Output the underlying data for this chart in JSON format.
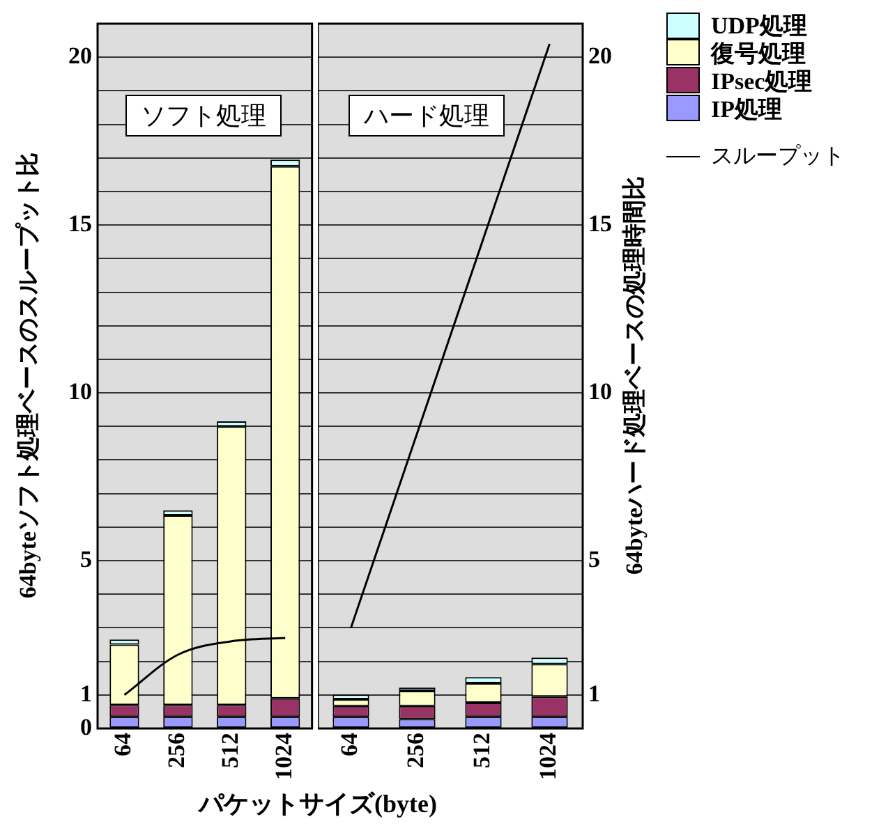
{
  "chart_data": [
    {
      "type": "bar",
      "stacked": true,
      "xlabel": "パケットサイズ(byte)",
      "ylabel": "64byteソフト処理ベースのスループット比",
      "annotations": [
        "ソフト処理"
      ],
      "categories": [
        "64",
        "256",
        "512",
        "1024"
      ],
      "series": [
        {
          "name": "IP処理",
          "color": "#9999ff",
          "values": [
            0.35,
            0.35,
            0.35,
            0.35
          ]
        },
        {
          "name": "IPsec処理",
          "color": "#993366",
          "values": [
            0.35,
            0.35,
            0.35,
            0.55
          ]
        },
        {
          "name": "復号処理",
          "color": "#ffffcc",
          "values": [
            1.8,
            5.65,
            8.3,
            15.85
          ]
        },
        {
          "name": "UDP処理",
          "color": "#ccffff",
          "values": [
            0.15,
            0.15,
            0.15,
            0.2
          ]
        },
        {
          "name": "スループット",
          "type": "line",
          "color": "#000000",
          "values": [
            1,
            2.2,
            2.6,
            2.7
          ]
        }
      ],
      "ylim": [
        0,
        21
      ],
      "yticks": [
        0,
        1,
        {
          "value": 2,
          "label": null
        },
        {
          "value": 3,
          "label": null
        },
        {
          "value": 4,
          "label": null
        },
        5,
        {
          "value": 6,
          "label": null
        },
        {
          "value": 7,
          "label": null
        },
        {
          "value": 8,
          "label": null
        },
        {
          "value": 9,
          "label": null
        },
        10,
        {
          "value": 11,
          "label": null
        },
        {
          "value": 12,
          "label": null
        },
        {
          "value": 13,
          "label": null
        },
        {
          "value": 14,
          "label": null
        },
        15,
        {
          "value": 16,
          "label": null
        },
        {
          "value": 17,
          "label": null
        },
        {
          "value": 18,
          "label": null
        },
        {
          "value": 19,
          "label": null
        },
        20,
        {
          "value": 21,
          "label": null
        }
      ],
      "grid": "y",
      "legend": "top right"
    },
    {
      "type": "bar",
      "stacked": true,
      "ylabel": "64byteハード処理ベースの処理時間比",
      "annotations": [
        "ハード処理"
      ],
      "categories": [
        "64",
        "256",
        "512",
        "1024"
      ],
      "series": [
        {
          "color": "#9999ff",
          "values": [
            0.35,
            0.28,
            0.35,
            0.35
          ]
        },
        {
          "color": "#993366",
          "values": [
            0.32,
            0.39,
            0.42,
            0.6
          ]
        },
        {
          "color": "#ffffcc",
          "values": [
            0.2,
            0.45,
            0.58,
            0.97
          ]
        },
        {
          "color": "#ccffff",
          "values": [
            0.14,
            0.1,
            0.18,
            0.19
          ]
        },
        {
          "type": "line",
          "color": "#000000",
          "values": [
            3,
            8.8,
            14.6,
            20.4
          ]
        }
      ],
      "ylim": [
        0,
        21
      ],
      "yticks": [
        {
          "value": 0,
          "label": null
        },
        1,
        {
          "value": 2,
          "label": null
        },
        {
          "value": 3,
          "label": null
        },
        {
          "value": 4,
          "label": null
        },
        5,
        {
          "value": 6,
          "label": null
        },
        {
          "value": 7,
          "label": null
        },
        {
          "value": 8,
          "label": null
        },
        {
          "value": 9,
          "label": null
        },
        10,
        {
          "value": 11,
          "label": null
        },
        {
          "value": 12,
          "label": null
        },
        {
          "value": 13,
          "label": null
        },
        {
          "value": 14,
          "label": null
        },
        15,
        {
          "value": 16,
          "label": null
        },
        {
          "value": 17,
          "label": null
        },
        {
          "value": 18,
          "label": null
        },
        {
          "value": 19,
          "label": null
        },
        20,
        {
          "value": 21,
          "label": null
        }
      ],
      "grid": "y"
    }
  ]
}
